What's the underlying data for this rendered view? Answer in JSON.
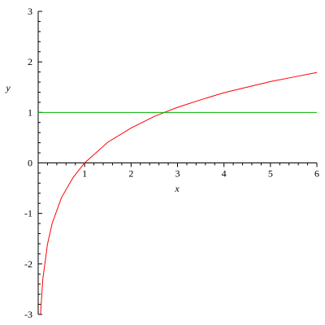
{
  "chart_data": {
    "type": "line",
    "title": "",
    "xlabel": "x",
    "ylabel": "y",
    "xlim": [
      0,
      6
    ],
    "ylim": [
      -3,
      3
    ],
    "x_ticks": [
      "1",
      "2",
      "3",
      "4",
      "5",
      "6"
    ],
    "y_ticks": [
      "-3",
      "-2",
      "-1",
      "0",
      "1",
      "2",
      "3"
    ],
    "grid": false,
    "series": [
      {
        "color": "#ff0000",
        "x": [
          0.05,
          0.1,
          0.2,
          0.3,
          0.5,
          0.75,
          1,
          1.5,
          2,
          2.5,
          2.718,
          3,
          3.5,
          4,
          4.5,
          5,
          5.5,
          6
        ],
        "y": [
          -3.0,
          -2.3,
          -1.61,
          -1.2,
          -0.69,
          -0.29,
          0.0,
          0.41,
          0.69,
          0.92,
          1.0,
          1.1,
          1.25,
          1.39,
          1.5,
          1.61,
          1.7,
          1.79
        ]
      },
      {
        "color": "#00b400",
        "x": [
          0,
          6
        ],
        "y": [
          1,
          1
        ]
      }
    ]
  }
}
